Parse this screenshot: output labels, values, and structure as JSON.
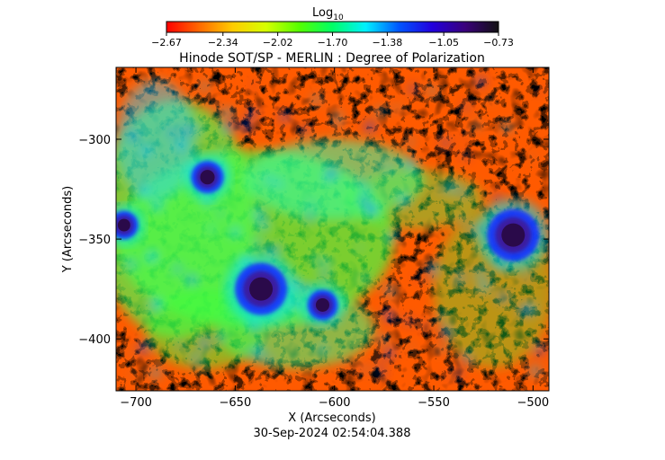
{
  "title": "Hinode SOT/SP - MERLIN : Degree of Polarization",
  "colorbar": {
    "label": "Log",
    "label_sub": "10",
    "ticks": [
      "-2.67",
      "-2.34",
      "-2.02",
      "-1.70",
      "-1.38",
      "-1.05",
      "-0.73"
    ],
    "range": [
      -2.67,
      -0.73
    ],
    "colormap": [
      "#ff0000",
      "#ff6a00",
      "#ffcc00",
      "#d6ff00",
      "#55ff00",
      "#00ff66",
      "#00f0ff",
      "#0055ff",
      "#2200dd",
      "#3a007a",
      "#111111"
    ]
  },
  "axes": {
    "xlabel": "X (Arcseconds)",
    "ylabel": "Y (Arcseconds)",
    "xlim": [
      -710,
      -492
    ],
    "ylim": [
      -426,
      -264
    ],
    "xticks": [
      -700,
      -650,
      -600,
      -550,
      -500
    ],
    "xtick_labels": [
      "−700",
      "−650",
      "−600",
      "−550",
      "−500"
    ],
    "yticks": [
      -300,
      -350,
      -400
    ],
    "ytick_labels": [
      "−300",
      "−350",
      "−400"
    ]
  },
  "timestamp": "30-Sep-2024 02:54:04.388",
  "features": {
    "sunspots": [
      {
        "x": -637,
        "y": -375,
        "strength": 1.0
      },
      {
        "x": -510,
        "y": -348,
        "strength": 1.0
      },
      {
        "x": -664,
        "y": -319,
        "strength": 0.55
      },
      {
        "x": -606,
        "y": -383,
        "strength": 0.5
      },
      {
        "x": -706,
        "y": -343,
        "strength": 0.45
      }
    ]
  }
}
